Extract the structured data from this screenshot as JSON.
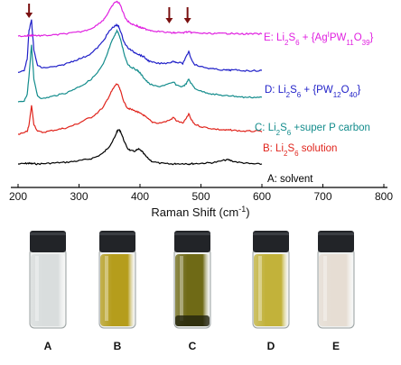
{
  "chart_data": {
    "type": "line",
    "xlabel": "Raman Shift (cm",
    "xlabel_sup": "-1",
    "xlabel_end": ")",
    "xlim": [
      200,
      800
    ],
    "xticks": [
      200,
      300,
      400,
      500,
      600,
      700,
      800
    ],
    "xtick_labels": [
      "200",
      "300",
      "400",
      "500",
      "600",
      "700",
      "800"
    ],
    "grid": false,
    "x": [
      200,
      210,
      215,
      218,
      222,
      226,
      232,
      240,
      250,
      260,
      270,
      280,
      290,
      300,
      310,
      320,
      330,
      340,
      345,
      350,
      355,
      360,
      362,
      365,
      368,
      372,
      376,
      380,
      385,
      390,
      395,
      398,
      402,
      406,
      410,
      415,
      420,
      430,
      440,
      450,
      455,
      460,
      470,
      476,
      480,
      484,
      490,
      500,
      510,
      520,
      530,
      540,
      545,
      550,
      560,
      570,
      580,
      590,
      600
    ],
    "series": [
      {
        "name": "A: solvent",
        "color": "#000000",
        "values": [
          0.05,
          0.06,
          0.07,
          0.07,
          0.06,
          0.06,
          0.05,
          0.06,
          0.07,
          0.08,
          0.09,
          0.1,
          0.12,
          0.14,
          0.17,
          0.2,
          0.26,
          0.36,
          0.45,
          0.55,
          0.68,
          0.84,
          0.95,
          1.0,
          0.96,
          0.78,
          0.6,
          0.48,
          0.42,
          0.4,
          0.44,
          0.46,
          0.42,
          0.34,
          0.26,
          0.18,
          0.12,
          0.08,
          0.06,
          0.05,
          0.05,
          0.06,
          0.06,
          0.06,
          0.05,
          0.06,
          0.06,
          0.07,
          0.08,
          0.09,
          0.12,
          0.16,
          0.17,
          0.14,
          0.1,
          0.08,
          0.06,
          0.05,
          0.05
        ]
      },
      {
        "name": "B: Li2S6 solution",
        "color": "#e0241c",
        "values": [
          0.05,
          0.07,
          0.1,
          0.2,
          0.55,
          0.22,
          0.1,
          0.08,
          0.1,
          0.12,
          0.14,
          0.16,
          0.2,
          0.24,
          0.3,
          0.34,
          0.42,
          0.52,
          0.62,
          0.72,
          0.82,
          0.9,
          0.92,
          0.88,
          0.8,
          0.66,
          0.56,
          0.5,
          0.48,
          0.46,
          0.44,
          0.42,
          0.4,
          0.38,
          0.34,
          0.3,
          0.26,
          0.24,
          0.26,
          0.3,
          0.34,
          0.28,
          0.24,
          0.32,
          0.4,
          0.3,
          0.22,
          0.18,
          0.16,
          0.14,
          0.13,
          0.12,
          0.12,
          0.12,
          0.11,
          0.1,
          0.1,
          0.1,
          0.1
        ]
      },
      {
        "name": "C: Li2S6 +super P carbon",
        "color": "#138c8c",
        "values": [
          0.05,
          0.07,
          0.15,
          0.4,
          0.82,
          0.35,
          0.14,
          0.1,
          0.12,
          0.14,
          0.16,
          0.18,
          0.22,
          0.26,
          0.3,
          0.36,
          0.44,
          0.56,
          0.66,
          0.78,
          0.88,
          0.96,
          1.0,
          0.96,
          0.88,
          0.76,
          0.64,
          0.56,
          0.52,
          0.5,
          0.48,
          0.46,
          0.42,
          0.38,
          0.34,
          0.3,
          0.28,
          0.26,
          0.28,
          0.3,
          0.32,
          0.28,
          0.26,
          0.3,
          0.36,
          0.3,
          0.24,
          0.2,
          0.18,
          0.16,
          0.15,
          0.14,
          0.14,
          0.14,
          0.13,
          0.12,
          0.12,
          0.12,
          0.12
        ]
      },
      {
        "name": "D: Li2S6 + {PW12O40}",
        "color": "#1f1fc8",
        "values": [
          0.05,
          0.1,
          0.3,
          0.8,
          1.0,
          0.45,
          0.18,
          0.14,
          0.15,
          0.16,
          0.18,
          0.22,
          0.26,
          0.3,
          0.34,
          0.4,
          0.5,
          0.62,
          0.72,
          0.8,
          0.86,
          0.9,
          0.9,
          0.88,
          0.8,
          0.66,
          0.56,
          0.5,
          0.46,
          0.42,
          0.4,
          0.38,
          0.36,
          0.34,
          0.3,
          0.26,
          0.24,
          0.22,
          0.22,
          0.24,
          0.26,
          0.24,
          0.22,
          0.34,
          0.44,
          0.3,
          0.2,
          0.16,
          0.14,
          0.12,
          0.11,
          0.1,
          0.1,
          0.1,
          0.1,
          0.09,
          0.09,
          0.09,
          0.09
        ]
      },
      {
        "name": "E: Li2S6 + {AgIPW11O39}",
        "color": "#e020e0",
        "values": [
          0.05,
          0.05,
          0.06,
          0.06,
          0.07,
          0.07,
          0.06,
          0.06,
          0.07,
          0.08,
          0.1,
          0.12,
          0.14,
          0.16,
          0.2,
          0.26,
          0.36,
          0.5,
          0.62,
          0.76,
          0.9,
          1.0,
          1.0,
          0.98,
          0.9,
          0.72,
          0.56,
          0.46,
          0.4,
          0.36,
          0.34,
          0.3,
          0.28,
          0.26,
          0.24,
          0.22,
          0.2,
          0.18,
          0.16,
          0.14,
          0.14,
          0.14,
          0.14,
          0.16,
          0.16,
          0.15,
          0.14,
          0.13,
          0.12,
          0.12,
          0.12,
          0.12,
          0.12,
          0.12,
          0.11,
          0.11,
          0.11,
          0.11,
          0.11
        ]
      }
    ],
    "annotations": {
      "arrows_at_x": [
        218,
        448,
        478
      ],
      "arrow_color": "#7a1010"
    }
  },
  "series_labels": [
    {
      "main": "A: solvent",
      "parts": [
        [
          "A: solvent",
          ""
        ]
      ]
    },
    {
      "main": "B: Li2S6 solution",
      "parts": [
        [
          "B: Li",
          ""
        ],
        [
          "2",
          "sub"
        ],
        [
          "S",
          ""
        ],
        [
          "6",
          "sub"
        ],
        [
          " solution",
          ""
        ]
      ]
    },
    {
      "main": "C: Li2S6 +super P carbon",
      "parts": [
        [
          "C: Li",
          ""
        ],
        [
          "2",
          "sub"
        ],
        [
          "S",
          ""
        ],
        [
          "6",
          "sub"
        ],
        [
          " +super P carbon",
          ""
        ]
      ]
    },
    {
      "main": "D: Li2S6 + {PW12O40}",
      "parts": [
        [
          "D: Li",
          ""
        ],
        [
          "2",
          "sub"
        ],
        [
          "S",
          ""
        ],
        [
          "6",
          "sub"
        ],
        [
          " + {PW",
          ""
        ],
        [
          "12",
          "sub"
        ],
        [
          "O",
          ""
        ],
        [
          "40",
          "sub"
        ],
        [
          "}",
          ""
        ]
      ]
    },
    {
      "main": "E: Li2S6 + {AgIPW11O39}",
      "parts": [
        [
          "E: Li",
          ""
        ],
        [
          "2",
          "sub"
        ],
        [
          "S",
          ""
        ],
        [
          "6",
          "sub"
        ],
        [
          " + {Ag",
          ""
        ],
        [
          "I",
          "sup"
        ],
        [
          "PW",
          ""
        ],
        [
          "11",
          "sub"
        ],
        [
          "O",
          ""
        ],
        [
          "39",
          "sub"
        ],
        [
          "}",
          ""
        ]
      ]
    }
  ],
  "vials": {
    "labels": [
      "A",
      "B",
      "C",
      "D",
      "E"
    ],
    "liquid_colors": [
      "#d9dddd",
      "#b59d1c",
      "#6f6a16",
      "#c2b23a",
      "#e6ddd3"
    ],
    "cap_color": "#222428"
  }
}
